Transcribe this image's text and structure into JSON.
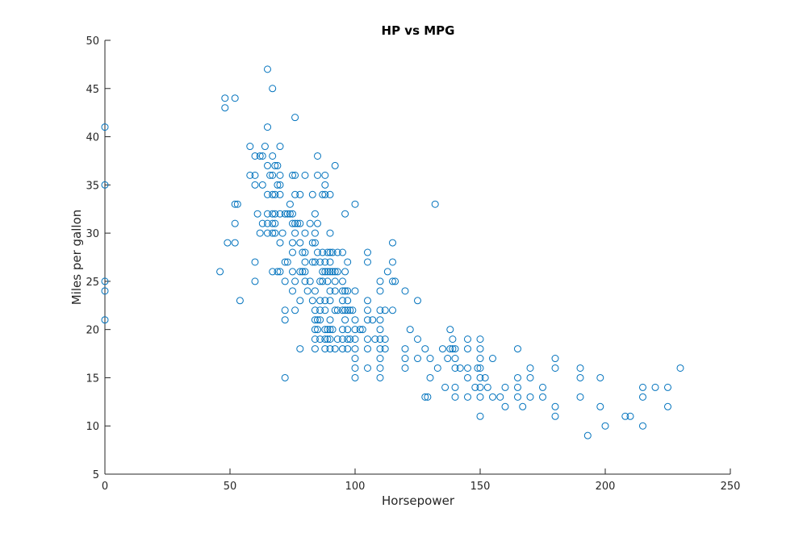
{
  "chart_data": {
    "type": "scatter",
    "title": "HP vs MPG",
    "xlabel": "Horsepower",
    "ylabel": "Miles per gallon",
    "xlim": [
      0,
      250
    ],
    "ylim": [
      5,
      50
    ],
    "xticks": [
      0,
      50,
      100,
      150,
      200,
      250
    ],
    "yticks": [
      5,
      10,
      15,
      20,
      25,
      30,
      35,
      40,
      45,
      50
    ],
    "grid": false,
    "marker": "open-circle",
    "marker_color": "#0072BD",
    "axis_color": "#262626",
    "series": [
      {
        "points": [
          [
            0,
            41
          ],
          [
            0,
            35
          ],
          [
            0,
            25
          ],
          [
            0,
            24
          ],
          [
            0,
            21
          ],
          [
            46,
            26
          ],
          [
            48,
            44
          ],
          [
            48,
            43
          ],
          [
            49,
            29
          ],
          [
            52,
            44
          ],
          [
            52,
            33
          ],
          [
            52,
            31
          ],
          [
            52,
            29
          ],
          [
            53,
            33
          ],
          [
            54,
            23
          ],
          [
            58,
            39
          ],
          [
            58,
            36
          ],
          [
            60,
            38
          ],
          [
            60,
            36
          ],
          [
            60,
            35
          ],
          [
            60,
            27
          ],
          [
            60,
            25
          ],
          [
            61,
            32
          ],
          [
            62,
            38
          ],
          [
            62,
            30
          ],
          [
            63,
            38
          ],
          [
            63,
            35
          ],
          [
            63,
            31
          ],
          [
            64,
            39
          ],
          [
            65,
            47
          ],
          [
            65,
            41
          ],
          [
            65,
            37
          ],
          [
            65,
            34
          ],
          [
            65,
            32
          ],
          [
            65,
            31
          ],
          [
            65,
            30
          ],
          [
            66,
            36
          ],
          [
            67,
            45
          ],
          [
            67,
            38
          ],
          [
            67,
            36
          ],
          [
            67,
            34
          ],
          [
            67,
            32
          ],
          [
            67,
            31
          ],
          [
            67,
            30
          ],
          [
            67,
            26
          ],
          [
            68,
            37
          ],
          [
            68,
            34
          ],
          [
            68,
            32
          ],
          [
            68,
            31
          ],
          [
            68,
            30
          ],
          [
            69,
            37
          ],
          [
            69,
            35
          ],
          [
            69,
            26
          ],
          [
            70,
            39
          ],
          [
            70,
            36
          ],
          [
            70,
            35
          ],
          [
            70,
            34
          ],
          [
            70,
            32
          ],
          [
            70,
            29
          ],
          [
            70,
            26
          ],
          [
            71,
            30
          ],
          [
            72,
            32
          ],
          [
            72,
            27
          ],
          [
            72,
            25
          ],
          [
            72,
            22
          ],
          [
            72,
            21
          ],
          [
            72,
            15
          ],
          [
            73,
            27
          ],
          [
            73,
            32
          ],
          [
            74,
            32
          ],
          [
            74,
            33
          ],
          [
            75,
            36
          ],
          [
            75,
            32
          ],
          [
            75,
            31
          ],
          [
            75,
            29
          ],
          [
            75,
            28
          ],
          [
            75,
            26
          ],
          [
            75,
            24
          ],
          [
            76,
            42
          ],
          [
            76,
            36
          ],
          [
            76,
            34
          ],
          [
            76,
            31
          ],
          [
            76,
            30
          ],
          [
            76,
            25
          ],
          [
            76,
            22
          ],
          [
            77,
            31
          ],
          [
            78,
            34
          ],
          [
            78,
            31
          ],
          [
            78,
            29
          ],
          [
            78,
            26
          ],
          [
            78,
            23
          ],
          [
            78,
            18
          ],
          [
            79,
            28
          ],
          [
            79,
            26
          ],
          [
            80,
            36
          ],
          [
            80,
            30
          ],
          [
            80,
            28
          ],
          [
            80,
            26
          ],
          [
            80,
            25
          ],
          [
            80,
            27
          ],
          [
            81,
            24
          ],
          [
            82,
            25
          ],
          [
            82,
            31
          ],
          [
            83,
            34
          ],
          [
            83,
            29
          ],
          [
            83,
            27
          ],
          [
            83,
            23
          ],
          [
            84,
            29
          ],
          [
            84,
            27
          ],
          [
            84,
            32
          ],
          [
            84,
            30
          ],
          [
            84,
            24
          ],
          [
            84,
            22
          ],
          [
            84,
            21
          ],
          [
            84,
            20
          ],
          [
            84,
            19
          ],
          [
            84,
            18
          ],
          [
            85,
            38
          ],
          [
            85,
            36
          ],
          [
            85,
            31
          ],
          [
            85,
            28
          ],
          [
            85,
            21
          ],
          [
            85,
            20
          ],
          [
            86,
            27
          ],
          [
            86,
            25
          ],
          [
            86,
            23
          ],
          [
            86,
            22
          ],
          [
            86,
            21
          ],
          [
            86,
            19
          ],
          [
            87,
            34
          ],
          [
            87,
            28
          ],
          [
            87,
            26
          ],
          [
            87,
            25
          ],
          [
            88,
            36
          ],
          [
            88,
            35
          ],
          [
            88,
            34
          ],
          [
            88,
            27
          ],
          [
            88,
            26
          ],
          [
            88,
            23
          ],
          [
            88,
            22
          ],
          [
            88,
            20
          ],
          [
            88,
            19
          ],
          [
            88,
            18
          ],
          [
            89,
            25
          ],
          [
            89,
            28
          ],
          [
            89,
            26
          ],
          [
            89,
            20
          ],
          [
            89,
            19
          ],
          [
            90,
            34
          ],
          [
            90,
            30
          ],
          [
            90,
            28
          ],
          [
            90,
            27
          ],
          [
            90,
            26
          ],
          [
            90,
            24
          ],
          [
            90,
            23
          ],
          [
            90,
            21
          ],
          [
            90,
            20
          ],
          [
            90,
            19
          ],
          [
            90,
            18
          ],
          [
            91,
            28
          ],
          [
            91,
            26
          ],
          [
            91,
            20
          ],
          [
            92,
            37
          ],
          [
            92,
            26
          ],
          [
            92,
            25
          ],
          [
            92,
            24
          ],
          [
            92,
            22
          ],
          [
            92,
            18
          ],
          [
            93,
            28
          ],
          [
            93,
            26
          ],
          [
            93,
            22
          ],
          [
            93,
            19
          ],
          [
            95,
            28
          ],
          [
            95,
            25
          ],
          [
            95,
            24
          ],
          [
            95,
            22
          ],
          [
            95,
            20
          ],
          [
            95,
            19
          ],
          [
            95,
            18
          ],
          [
            95,
            23
          ],
          [
            96,
            32
          ],
          [
            96,
            24
          ],
          [
            96,
            26
          ],
          [
            96,
            22
          ],
          [
            96,
            21
          ],
          [
            97,
            27
          ],
          [
            97,
            24
          ],
          [
            97,
            22
          ],
          [
            97,
            19
          ],
          [
            97,
            18
          ],
          [
            97,
            23
          ],
          [
            97,
            20
          ],
          [
            98,
            22
          ],
          [
            98,
            19
          ],
          [
            99,
            22
          ],
          [
            100,
            33
          ],
          [
            100,
            24
          ],
          [
            100,
            21
          ],
          [
            100,
            20
          ],
          [
            100,
            19
          ],
          [
            100,
            18
          ],
          [
            100,
            17
          ],
          [
            100,
            16
          ],
          [
            100,
            15
          ],
          [
            102,
            20
          ],
          [
            103,
            20
          ],
          [
            105,
            28
          ],
          [
            105,
            27
          ],
          [
            105,
            23
          ],
          [
            105,
            22
          ],
          [
            105,
            21
          ],
          [
            105,
            19
          ],
          [
            105,
            18
          ],
          [
            105,
            16
          ],
          [
            107,
            21
          ],
          [
            108,
            19
          ],
          [
            110,
            25
          ],
          [
            110,
            24
          ],
          [
            110,
            22
          ],
          [
            110,
            21
          ],
          [
            110,
            20
          ],
          [
            110,
            19
          ],
          [
            110,
            18
          ],
          [
            110,
            17
          ],
          [
            110,
            16
          ],
          [
            110,
            15
          ],
          [
            112,
            22
          ],
          [
            112,
            19
          ],
          [
            112,
            18
          ],
          [
            113,
            26
          ],
          [
            115,
            29
          ],
          [
            115,
            27
          ],
          [
            115,
            25
          ],
          [
            115,
            22
          ],
          [
            116,
            25
          ],
          [
            120,
            24
          ],
          [
            120,
            18
          ],
          [
            120,
            17
          ],
          [
            120,
            16
          ],
          [
            122,
            20
          ],
          [
            125,
            23
          ],
          [
            125,
            19
          ],
          [
            125,
            17
          ],
          [
            128,
            18
          ],
          [
            128,
            13
          ],
          [
            129,
            13
          ],
          [
            130,
            17
          ],
          [
            130,
            15
          ],
          [
            132,
            33
          ],
          [
            133,
            16
          ],
          [
            135,
            18
          ],
          [
            136,
            14
          ],
          [
            137,
            17
          ],
          [
            138,
            20
          ],
          [
            138,
            18
          ],
          [
            139,
            19
          ],
          [
            139,
            18
          ],
          [
            140,
            18
          ],
          [
            140,
            17
          ],
          [
            140,
            16
          ],
          [
            140,
            14
          ],
          [
            140,
            13
          ],
          [
            142,
            16
          ],
          [
            145,
            19
          ],
          [
            145,
            18
          ],
          [
            145,
            16
          ],
          [
            145,
            15
          ],
          [
            145,
            13
          ],
          [
            148,
            14
          ],
          [
            150,
            19
          ],
          [
            150,
            18
          ],
          [
            150,
            17
          ],
          [
            150,
            16
          ],
          [
            150,
            15
          ],
          [
            150,
            14
          ],
          [
            150,
            13
          ],
          [
            150,
            11
          ],
          [
            149,
            16
          ],
          [
            152,
            15
          ],
          [
            153,
            14
          ],
          [
            155,
            17
          ],
          [
            155,
            13
          ],
          [
            158,
            13
          ],
          [
            160,
            14
          ],
          [
            160,
            12
          ],
          [
            165,
            18
          ],
          [
            165,
            15
          ],
          [
            165,
            14
          ],
          [
            165,
            13
          ],
          [
            167,
            12
          ],
          [
            170,
            16
          ],
          [
            170,
            15
          ],
          [
            170,
            13
          ],
          [
            175,
            14
          ],
          [
            175,
            13
          ],
          [
            180,
            17
          ],
          [
            180,
            16
          ],
          [
            180,
            12
          ],
          [
            180,
            11
          ],
          [
            190,
            16
          ],
          [
            190,
            15
          ],
          [
            190,
            13
          ],
          [
            193,
            9
          ],
          [
            198,
            15
          ],
          [
            198,
            12
          ],
          [
            200,
            10
          ],
          [
            208,
            11
          ],
          [
            210,
            11
          ],
          [
            215,
            14
          ],
          [
            215,
            13
          ],
          [
            215,
            10
          ],
          [
            220,
            14
          ],
          [
            225,
            14
          ],
          [
            225,
            12
          ],
          [
            230,
            16
          ]
        ]
      }
    ]
  }
}
